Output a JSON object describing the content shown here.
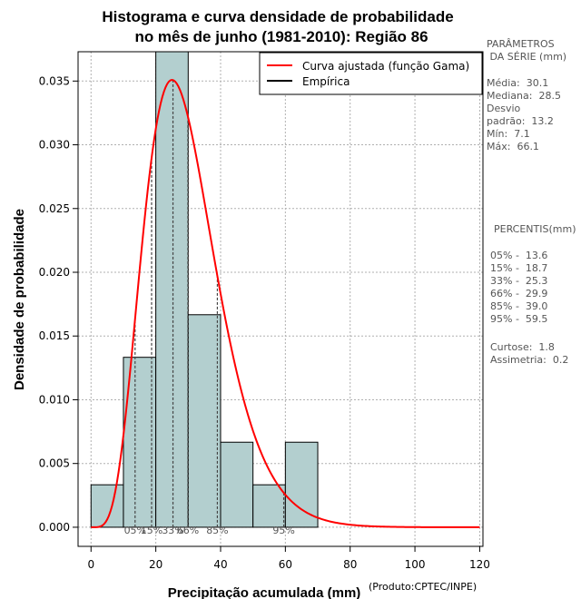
{
  "chart_data": {
    "type": "bar",
    "title_lines": [
      "Histograma e curva densidade de probabilidade",
      "no mês de junho (1981-2010): Região 86"
    ],
    "xlabel": "Precipitação acumulada (mm)",
    "ylabel": "Densidade de probabilidade",
    "credit": "(Produto:CPTEC/INPE)",
    "xlim": [
      -4,
      121
    ],
    "ylim": [
      -0.0015,
      0.0373
    ],
    "xticks": [
      0,
      20,
      40,
      60,
      80,
      100,
      120
    ],
    "yticks": [
      0.0,
      0.005,
      0.01,
      0.015,
      0.02,
      0.025,
      0.03,
      0.035
    ],
    "ytick_labels": [
      "0.000",
      "0.005",
      "0.010",
      "0.015",
      "0.020",
      "0.025",
      "0.030",
      "0.035"
    ],
    "grid": true,
    "bin_edges": [
      0,
      10,
      20,
      30,
      40,
      50,
      60,
      70
    ],
    "bin_values": [
      0.00333,
      0.01333,
      0.03733,
      0.01667,
      0.00667,
      0.00333,
      0.00667
    ],
    "bar_color": "#b3cfcf",
    "curve": {
      "name": "Curva ajustada (função Gama)",
      "color": "#ff0000",
      "distribution": "gamma",
      "shape": 6.0,
      "scale": 5.0
    },
    "legend": {
      "position": "top-right",
      "entries": [
        {
          "label": "Curva ajustada (função Gama)",
          "color": "#ff0000"
        },
        {
          "label": "Empírica",
          "color": "#000000"
        }
      ]
    },
    "percentile_lines": [
      {
        "label": "05%",
        "value": 13.6
      },
      {
        "label": "15%",
        "value": 18.7
      },
      {
        "label": "33%",
        "value": 25.3
      },
      {
        "label": "66%",
        "value": 29.9
      },
      {
        "label": "85%",
        "value": 39.0
      },
      {
        "label": "95%",
        "value": 59.5
      }
    ]
  },
  "side_panel": {
    "params_title": [
      "PARÂMETROS",
      " DA SÉRIE (mm)"
    ],
    "params": [
      "Média:  30.1",
      "Mediana:  28.5",
      "Desvio",
      "padrão:  13.2",
      "Mín:  7.1",
      "Máx:  66.1"
    ],
    "percentis_title": "PERCENTIS(mm)",
    "percentis": [
      "05% -  13.6",
      "15% -  18.7",
      "33% -  25.3",
      "66% -  29.9",
      "85% -  39.0",
      "95% -  59.5"
    ],
    "stats": [
      "Curtose:  1.8",
      "Assimetria:  0.2"
    ]
  }
}
